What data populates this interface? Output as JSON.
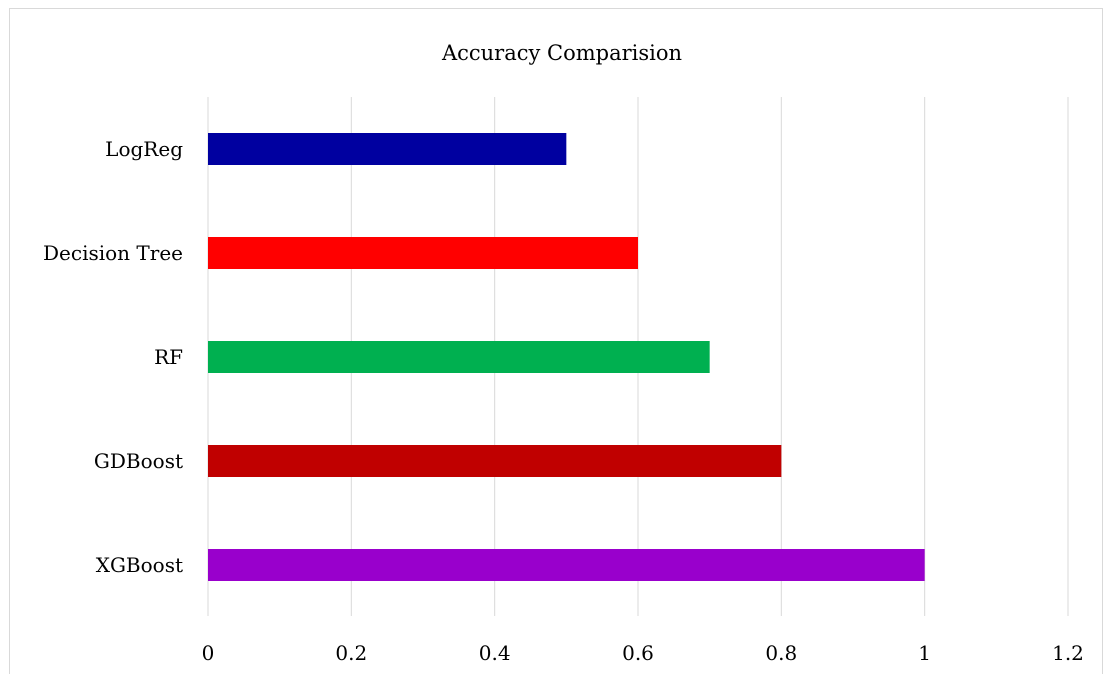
{
  "chart_data": {
    "type": "bar",
    "orientation": "horizontal",
    "title": "Accuracy Comparision",
    "xlabel": "",
    "ylabel": "",
    "categories": [
      "LogReg",
      "Decision Tree",
      "RF",
      "GDBoost",
      "XGBoost"
    ],
    "values": [
      0.5,
      0.6,
      0.7,
      0.8,
      1.0
    ],
    "colors": [
      "#0000a0",
      "#ff0000",
      "#00b050",
      "#c00000",
      "#9900cc"
    ],
    "xlim": [
      0,
      1.2
    ],
    "x_ticks": [
      "0",
      "0.2",
      "0.4",
      "0.6",
      "0.8",
      "1",
      "1.2"
    ],
    "grid": true,
    "grid_color": "#d9d9d9",
    "legend": "none"
  }
}
